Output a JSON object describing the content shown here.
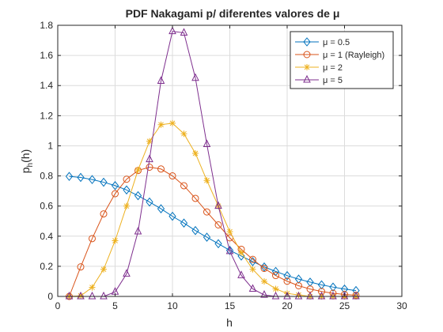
{
  "chart_data": {
    "type": "line",
    "title": "PDF Nakagami p/ diferentes valores de μ",
    "xlabel": "h",
    "ylabel": "p_h(h)",
    "xlim": [
      0,
      30
    ],
    "ylim": [
      0,
      1.8
    ],
    "xticks": [
      0,
      5,
      10,
      15,
      20,
      25,
      30
    ],
    "yticks": [
      0,
      0.2,
      0.4,
      0.6,
      0.8,
      1,
      1.2,
      1.4,
      1.6,
      1.8
    ],
    "grid": true,
    "legend_position": "top-right",
    "x": [
      1,
      2,
      3,
      4,
      5,
      6,
      7,
      8,
      9,
      10,
      11,
      12,
      13,
      14,
      15,
      16,
      17,
      18,
      19,
      20,
      21,
      22,
      23,
      24,
      25,
      26
    ],
    "series": [
      {
        "name": "μ = 0.5",
        "color": "#0072BD",
        "marker": "diamond",
        "values": [
          0.797,
          0.79,
          0.776,
          0.758,
          0.736,
          0.707,
          0.669,
          0.627,
          0.582,
          0.532,
          0.487,
          0.437,
          0.393,
          0.35,
          0.306,
          0.268,
          0.231,
          0.196,
          0.166,
          0.138,
          0.115,
          0.095,
          0.077,
          0.062,
          0.049,
          0.039
        ]
      },
      {
        "name": "μ = 1 (Rayleigh)",
        "color": "#D95319",
        "marker": "circle",
        "values": [
          0.0,
          0.196,
          0.384,
          0.548,
          0.682,
          0.778,
          0.836,
          0.858,
          0.846,
          0.8,
          0.735,
          0.651,
          0.561,
          0.475,
          0.389,
          0.313,
          0.246,
          0.186,
          0.139,
          0.101,
          0.071,
          0.049,
          0.033,
          0.021,
          0.013,
          0.008
        ]
      },
      {
        "name": "μ = 2",
        "color": "#EDB120",
        "marker": "star",
        "values": [
          0.0,
          0.004,
          0.06,
          0.18,
          0.37,
          0.6,
          0.84,
          1.03,
          1.14,
          1.15,
          1.08,
          0.95,
          0.77,
          0.6,
          0.43,
          0.29,
          0.18,
          0.1,
          0.05,
          0.02,
          0.01,
          0.0,
          0.0,
          0.0,
          0.0,
          0.0
        ]
      },
      {
        "name": "μ = 5",
        "color": "#7E2F8E",
        "marker": "triangle",
        "values": [
          0.0,
          0.0,
          0.0,
          0.0,
          0.03,
          0.15,
          0.43,
          0.91,
          1.43,
          1.76,
          1.75,
          1.45,
          1.01,
          0.6,
          0.3,
          0.14,
          0.05,
          0.01,
          0.0,
          0.0,
          0.0,
          0.0,
          0.0,
          0.0,
          0.0,
          0.0
        ]
      }
    ]
  }
}
